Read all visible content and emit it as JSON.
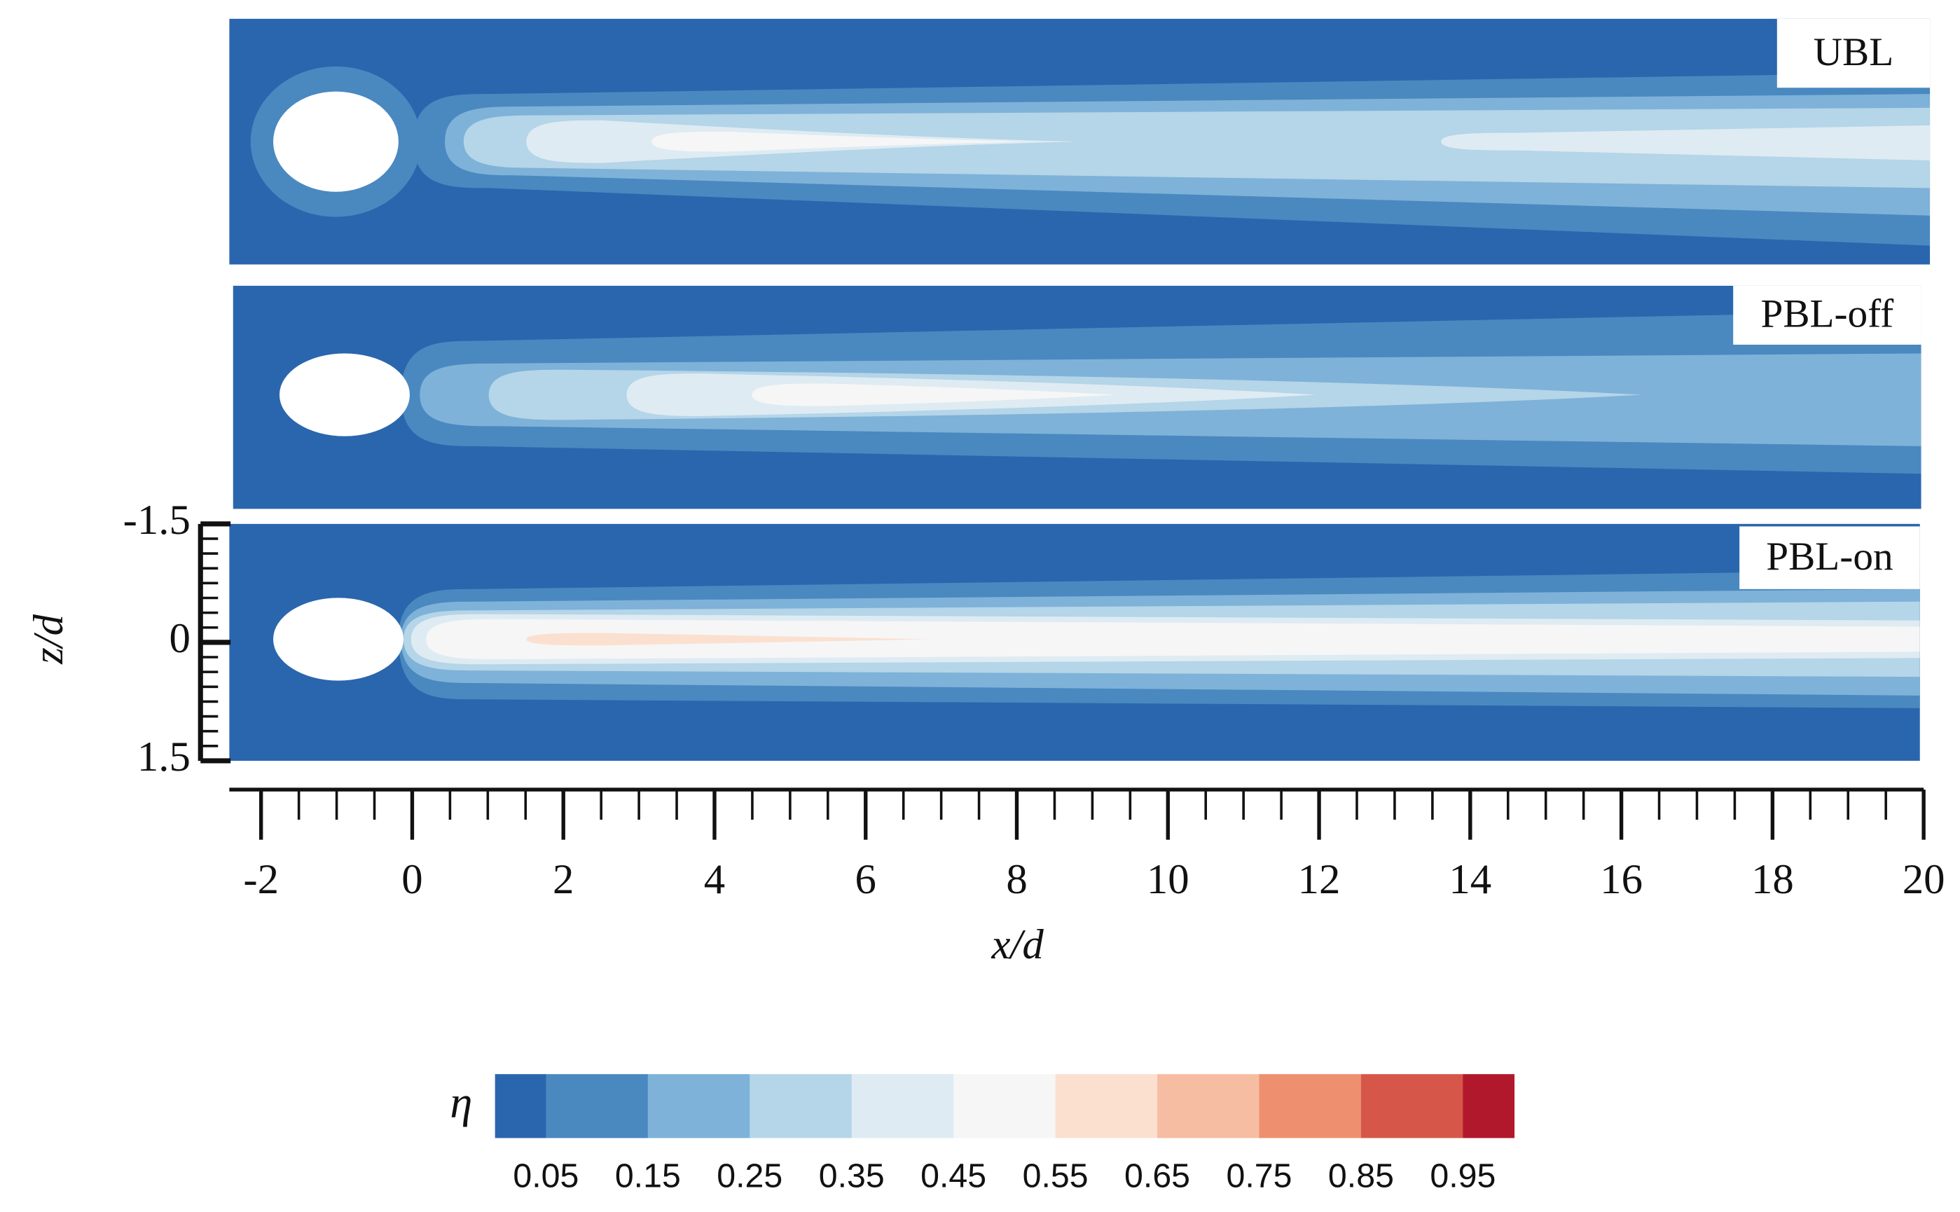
{
  "chart_data": {
    "type": "contour",
    "panels": [
      {
        "label": "UBL"
      },
      {
        "label": "PBL-off"
      },
      {
        "label": "PBL-on"
      }
    ],
    "xlabel": "x/d",
    "ylabel": "z/d",
    "xlim": [
      -2.42,
      20
    ],
    "xticks": [
      -2,
      0,
      2,
      4,
      6,
      8,
      10,
      12,
      14,
      16,
      18,
      20
    ],
    "ylim": [
      -1.5,
      1.5
    ],
    "yticks": [
      -1.5,
      0,
      1.5
    ],
    "grid": false,
    "colorbar": {
      "label": "η",
      "lim": [
        0,
        1
      ],
      "ticks": [
        0.05,
        0.15,
        0.25,
        0.35,
        0.45,
        0.55,
        0.65,
        0.75,
        0.85,
        0.95
      ],
      "colors": [
        "#2a66ae",
        "#4a88c0",
        "#7eb2d8",
        "#b5d5e8",
        "#deebf3",
        "#f6f6f6",
        "#fbe0d0",
        "#f6bda2",
        "#ee9070",
        "#d6574a",
        "#b2182b"
      ]
    }
  }
}
